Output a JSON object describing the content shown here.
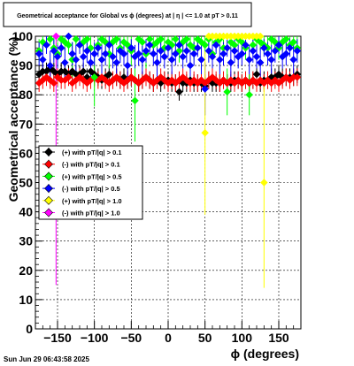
{
  "title": "Geometrical acceptance for Global vs ϕ (degrees) at | η | <= 1.0 at pT > 0.11",
  "timestamp": "Sun Jun 29 06:43:58 2025",
  "chart_data": {
    "type": "scatter",
    "title": "Geometrical acceptance for Global vs ϕ (degrees) at | η | <= 1.0 at pT > 0.11",
    "xlabel": "ϕ (degrees)",
    "ylabel": "Geometrical acceptance (%)",
    "xlim": [
      -180,
      180
    ],
    "ylim": [
      0,
      100
    ],
    "xticks": [
      -150,
      -100,
      -50,
      0,
      50,
      100,
      150
    ],
    "yticks": [
      0,
      10,
      20,
      30,
      40,
      50,
      60,
      70,
      80,
      90,
      100
    ],
    "grid": true,
    "legend_position": "center-left",
    "colors": {
      "s0": "#000000",
      "s1": "#ff0000",
      "s2": "#00ff00",
      "s3": "#0000ff",
      "s4": "#ffff00",
      "s5": "#ff00ff"
    },
    "series": [
      {
        "name": "(+) with pT/|q| > 0.1",
        "color": "#000000",
        "x": [
          -175,
          -170,
          -165,
          -160,
          -155,
          -150,
          -145,
          -140,
          -135,
          -130,
          -125,
          -120,
          -115,
          -110,
          -105,
          -100,
          -95,
          -90,
          -85,
          -80,
          -75,
          -70,
          -65,
          -60,
          -55,
          -50,
          -45,
          -40,
          -35,
          -30,
          -25,
          -20,
          -15,
          -10,
          -5,
          0,
          5,
          10,
          15,
          20,
          25,
          30,
          35,
          40,
          45,
          50,
          55,
          60,
          65,
          70,
          75,
          80,
          85,
          90,
          95,
          100,
          105,
          110,
          115,
          120,
          125,
          130,
          135,
          140,
          145,
          150,
          155,
          160,
          165,
          170,
          175
        ],
        "y": [
          87,
          88,
          88,
          89,
          88,
          87,
          88,
          88,
          87,
          88,
          87,
          87,
          88,
          86,
          88,
          87,
          86,
          85,
          86,
          87,
          85,
          86,
          85,
          86,
          85,
          86,
          85,
          84,
          85,
          86,
          85,
          84,
          85,
          84,
          85,
          85,
          84,
          84,
          81,
          84,
          84,
          85,
          84,
          84,
          84,
          83,
          85,
          84,
          84,
          84,
          85,
          84,
          84,
          85,
          85,
          84,
          85,
          84,
          85,
          87,
          84,
          85,
          85,
          86,
          86,
          87,
          86,
          86,
          86,
          86,
          87
        ],
        "yerr": [
          3,
          3,
          3,
          3,
          3,
          3,
          3,
          3,
          3,
          3,
          3,
          3,
          3,
          3,
          3,
          3,
          3,
          3,
          3,
          3,
          3,
          3,
          3,
          3,
          3,
          3,
          3,
          3,
          3,
          3,
          3,
          3,
          3,
          3,
          3,
          3,
          3,
          3,
          3,
          3,
          3,
          3,
          3,
          3,
          3,
          3,
          3,
          3,
          3,
          3,
          3,
          3,
          3,
          3,
          3,
          3,
          3,
          3,
          3,
          3,
          3,
          3,
          3,
          3,
          3,
          3,
          3,
          3,
          3,
          3,
          3
        ]
      },
      {
        "name": "(-) with pT/|q| > 0.1",
        "color": "#ff0000",
        "x": [
          -175,
          -170,
          -165,
          -160,
          -155,
          -150,
          -145,
          -140,
          -135,
          -130,
          -125,
          -120,
          -115,
          -110,
          -105,
          -100,
          -95,
          -90,
          -85,
          -80,
          -75,
          -70,
          -65,
          -60,
          -55,
          -50,
          -45,
          -40,
          -35,
          -30,
          -25,
          -20,
          -15,
          -10,
          -5,
          0,
          5,
          10,
          15,
          20,
          25,
          30,
          35,
          40,
          45,
          50,
          55,
          60,
          65,
          70,
          75,
          80,
          85,
          90,
          95,
          100,
          105,
          110,
          115,
          120,
          125,
          130,
          135,
          140,
          145,
          150,
          155,
          160,
          165,
          170,
          175
        ],
        "y": [
          84,
          85,
          86,
          85,
          84,
          86,
          85,
          85,
          86,
          84,
          85,
          86,
          85,
          84,
          85,
          86,
          85,
          86,
          85,
          84,
          85,
          86,
          85,
          84,
          85,
          86,
          85,
          84,
          85,
          86,
          85,
          84,
          85,
          86,
          85,
          84,
          85,
          84,
          85,
          86,
          85,
          84,
          85,
          84,
          85,
          84,
          85,
          86,
          85,
          84,
          85,
          84,
          85,
          84,
          85,
          84,
          85,
          84,
          85,
          84,
          85,
          84,
          85,
          84,
          85,
          84,
          85,
          86,
          85,
          86,
          86
        ],
        "yerr": [
          3,
          3,
          3,
          3,
          3,
          3,
          3,
          3,
          3,
          3,
          3,
          3,
          3,
          3,
          3,
          3,
          3,
          3,
          3,
          3,
          3,
          3,
          3,
          3,
          3,
          3,
          3,
          3,
          3,
          3,
          3,
          3,
          3,
          3,
          3,
          3,
          3,
          3,
          3,
          3,
          3,
          3,
          3,
          3,
          3,
          3,
          3,
          3,
          3,
          3,
          3,
          3,
          3,
          3,
          3,
          3,
          3,
          3,
          3,
          3,
          3,
          3,
          3,
          3,
          3,
          3,
          3,
          3,
          3,
          3,
          3
        ]
      },
      {
        "name": "(+) with pT/|q| > 0.5",
        "color": "#00ff00",
        "x": [
          -175,
          -170,
          -165,
          -160,
          -155,
          -150,
          -145,
          -140,
          -135,
          -130,
          -125,
          -120,
          -115,
          -110,
          -105,
          -100,
          -95,
          -90,
          -85,
          -80,
          -75,
          -70,
          -65,
          -60,
          -55,
          -50,
          -45,
          -40,
          -35,
          -30,
          -25,
          -20,
          -15,
          -10,
          -5,
          0,
          5,
          10,
          15,
          20,
          25,
          30,
          35,
          40,
          45,
          50,
          55,
          60,
          65,
          70,
          75,
          80,
          85,
          90,
          95,
          100,
          105,
          110,
          115,
          120,
          125,
          130,
          135,
          140,
          145,
          150,
          155,
          160,
          165,
          170,
          175
        ],
        "y": [
          95,
          98,
          97,
          99,
          96,
          94,
          99,
          98,
          97,
          92,
          99,
          97,
          98,
          99,
          96,
          86,
          97,
          99,
          98,
          94,
          98,
          99,
          96,
          98,
          97,
          95,
          78,
          99,
          98,
          94,
          99,
          97,
          98,
          99,
          96,
          98,
          97,
          99,
          95,
          98,
          99,
          97,
          96,
          99,
          98,
          97,
          99,
          94,
          98,
          99,
          96,
          81,
          98,
          97,
          99,
          98,
          96,
          80,
          97,
          99,
          98,
          97,
          96,
          99,
          98,
          96,
          98,
          99,
          97,
          98,
          96
        ],
        "yerr": [
          4,
          3,
          3,
          2,
          4,
          4,
          2,
          3,
          3,
          6,
          2,
          3,
          3,
          2,
          4,
          10,
          3,
          2,
          3,
          5,
          3,
          2,
          4,
          3,
          3,
          5,
          14,
          2,
          3,
          5,
          2,
          3,
          3,
          2,
          4,
          3,
          3,
          2,
          4,
          3,
          2,
          3,
          4,
          2,
          3,
          3,
          2,
          5,
          3,
          2,
          4,
          8,
          3,
          3,
          2,
          3,
          4,
          7,
          3,
          2,
          3,
          3,
          4,
          2,
          3,
          4,
          3,
          2,
          3,
          3,
          4
        ]
      },
      {
        "name": "(-) with pT/|q| > 0.5",
        "color": "#0000ff",
        "x": [
          -175,
          -170,
          -165,
          -160,
          -155,
          -150,
          -145,
          -140,
          -135,
          -130,
          -125,
          -120,
          -115,
          -110,
          -105,
          -100,
          -95,
          -90,
          -85,
          -80,
          -75,
          -70,
          -65,
          -60,
          -55,
          -50,
          -45,
          -40,
          -35,
          -30,
          -25,
          -20,
          -15,
          -10,
          -5,
          0,
          5,
          10,
          15,
          20,
          25,
          30,
          35,
          40,
          45,
          50,
          55,
          60,
          65,
          70,
          75,
          80,
          85,
          90,
          95,
          100,
          105,
          110,
          115,
          120,
          125,
          130,
          135,
          140,
          145,
          150,
          155,
          160,
          165,
          170,
          175
        ],
        "y": [
          94,
          92,
          97,
          90,
          95,
          93,
          96,
          91,
          100,
          94,
          92,
          97,
          93,
          95,
          91,
          94,
          96,
          92,
          94,
          97,
          93,
          91,
          95,
          94,
          90,
          96,
          93,
          94,
          92,
          95,
          97,
          94,
          91,
          95,
          93,
          96,
          92,
          94,
          97,
          93,
          95,
          90,
          94,
          96,
          92,
          82,
          95,
          93,
          97,
          92,
          94,
          96,
          91,
          95,
          93,
          94,
          97,
          92,
          95,
          93,
          91,
          96,
          94,
          92,
          95,
          97,
          93,
          94,
          96,
          92,
          95
        ],
        "yerr": [
          4,
          5,
          3,
          5,
          4,
          4,
          3,
          5,
          1,
          4,
          5,
          3,
          4,
          4,
          5,
          4,
          3,
          5,
          4,
          3,
          4,
          5,
          4,
          4,
          5,
          3,
          4,
          4,
          5,
          4,
          3,
          4,
          5,
          4,
          4,
          3,
          5,
          4,
          3,
          4,
          4,
          5,
          4,
          3,
          5,
          9,
          4,
          4,
          3,
          5,
          4,
          3,
          5,
          4,
          4,
          4,
          3,
          5,
          4,
          4,
          5,
          3,
          4,
          5,
          4,
          3,
          4,
          4,
          3,
          5,
          4
        ]
      },
      {
        "name": "(+) with pT/|q| > 1.0",
        "color": "#ffff00",
        "x": [
          50,
          55,
          60,
          65,
          70,
          75,
          80,
          85,
          90,
          95,
          100,
          105,
          110,
          115,
          120,
          125,
          130
        ],
        "y": [
          67,
          100,
          100,
          100,
          100,
          100,
          100,
          100,
          100,
          100,
          100,
          100,
          100,
          100,
          100,
          100,
          50
        ],
        "yerr": [
          28,
          0,
          0,
          0,
          0,
          0,
          0,
          0,
          0,
          0,
          0,
          0,
          0,
          0,
          0,
          0,
          36
        ]
      },
      {
        "name": "(-) with pT/|q| > 1.0",
        "color": "#ff00ff",
        "x": [
          -152
        ],
        "y": [
          100
        ],
        "yerr": [
          85
        ]
      }
    ]
  }
}
